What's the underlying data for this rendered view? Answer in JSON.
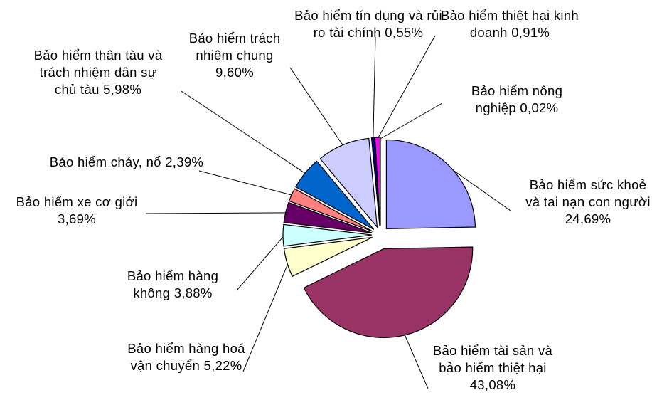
{
  "chart_data": {
    "type": "pie",
    "categories": [
      "Bảo hiểm sức khoẻ và tai nạn con người",
      "Bảo hiểm tài sản và bảo hiểm thiệt hại",
      "Bảo hiểm hàng hoá vận chuyển",
      "Bảo hiểm hàng không",
      "Bảo hiểm xe cơ giới",
      "Bảo hiểm cháy, nổ",
      "Bảo hiểm thân tàu và trách nhiệm dân sự chủ tàu",
      "Bảo hiểm trách nhiệm chung",
      "Bảo hiểm tín dụng và rủi ro tài chính",
      "Bảo hiểm thiệt hại kinh doanh",
      "Bảo hiểm nông nghiệp"
    ],
    "values": [
      24.69,
      43.08,
      5.22,
      3.88,
      3.69,
      2.39,
      5.98,
      9.6,
      0.55,
      0.91,
      0.02
    ],
    "value_labels": [
      "24,69%",
      "43,08%",
      "5,22%",
      "3,88%",
      "3,69%",
      "2,39%",
      "5,98%",
      "9,60%",
      "0,55%",
      "0,91%",
      "0,02%"
    ],
    "colors": [
      "#9999ff",
      "#993366",
      "#ffffcc",
      "#ccffff",
      "#660066",
      "#ff8080",
      "#0066cc",
      "#ccccff",
      "#000080",
      "#ff00ff",
      "#ffff00"
    ]
  }
}
